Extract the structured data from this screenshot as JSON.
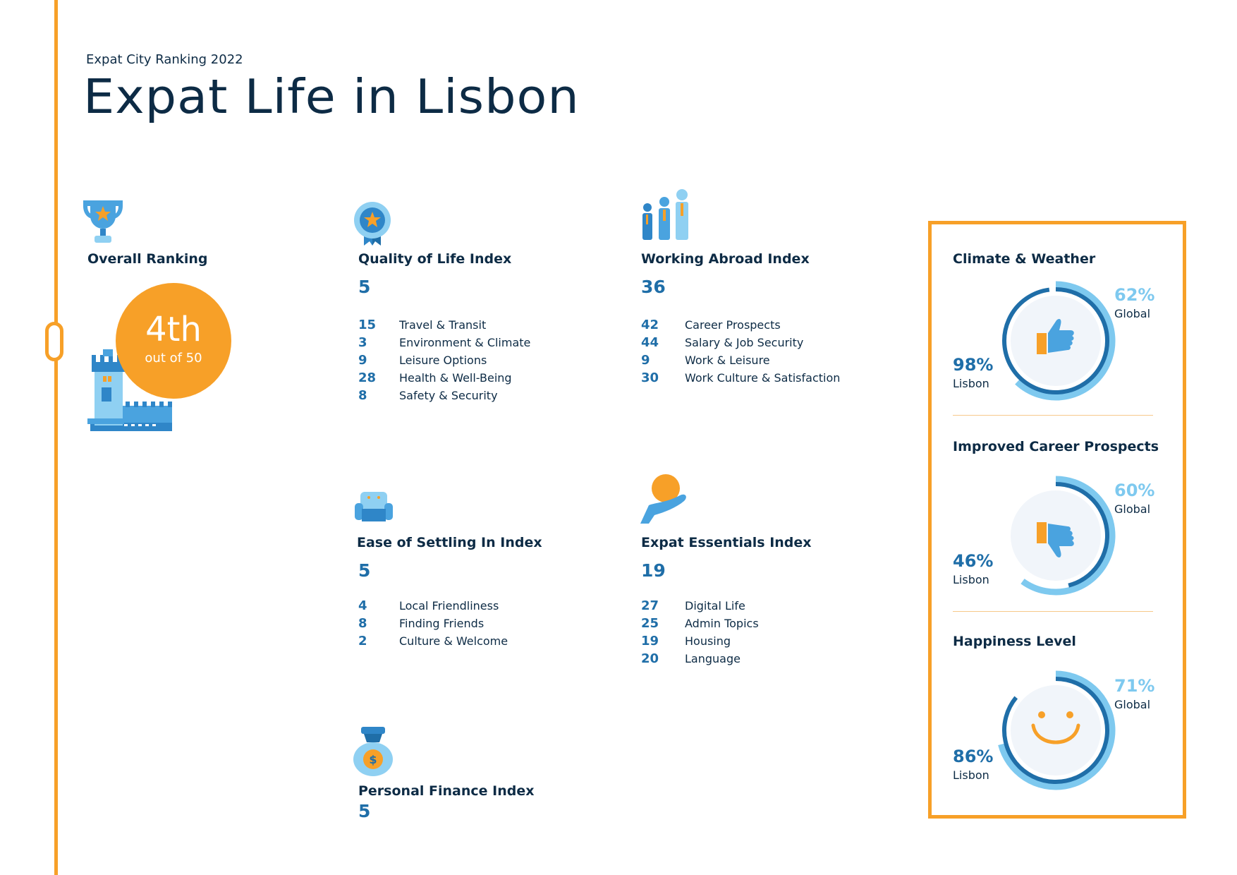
{
  "header": {
    "subtitle": "Expat City Ranking 2022",
    "title": "Expat Life in Lisbon"
  },
  "overall": {
    "title": "Overall Ranking",
    "rank": "4th",
    "out_of": "out of 50"
  },
  "quality": {
    "title": "Quality of Life Index",
    "score": "5",
    "items": [
      {
        "rank": "15",
        "label": "Travel & Transit"
      },
      {
        "rank": "3",
        "label": "Environment & Climate"
      },
      {
        "rank": "9",
        "label": "Leisure Options"
      },
      {
        "rank": "28",
        "label": "Health & Well-Being"
      },
      {
        "rank": "8",
        "label": "Safety & Security"
      }
    ]
  },
  "working": {
    "title": "Working Abroad Index",
    "score": "36",
    "items": [
      {
        "rank": "42",
        "label": "Career Prospects"
      },
      {
        "rank": "44",
        "label": "Salary & Job Security"
      },
      {
        "rank": "9",
        "label": "Work & Leisure"
      },
      {
        "rank": "30",
        "label": "Work Culture & Satisfaction"
      }
    ]
  },
  "settling": {
    "title": "Ease of Settling In Index",
    "score": "5",
    "items": [
      {
        "rank": "4",
        "label": "Local Friendliness"
      },
      {
        "rank": "8",
        "label": "Finding Friends"
      },
      {
        "rank": "2",
        "label": "Culture & Welcome"
      }
    ]
  },
  "essentials": {
    "title": "Expat Essentials Index",
    "score": "19",
    "items": [
      {
        "rank": "27",
        "label": "Digital Life"
      },
      {
        "rank": "25",
        "label": "Admin Topics"
      },
      {
        "rank": "19",
        "label": "Housing"
      },
      {
        "rank": "20",
        "label": "Language"
      }
    ]
  },
  "finance": {
    "title": "Personal Finance Index",
    "score": "5"
  },
  "gauges": [
    {
      "title": "Climate & Weather",
      "global_pct": "62%",
      "global_label": "Global",
      "global_value": 0.62,
      "lisbon_pct": "98%",
      "lisbon_label": "Lisbon",
      "lisbon_value": 0.98,
      "icon": "thumbs-up-icon"
    },
    {
      "title": "Improved Career Prospects",
      "global_pct": "60%",
      "global_label": "Global",
      "global_value": 0.6,
      "lisbon_pct": "46%",
      "lisbon_label": "Lisbon",
      "lisbon_value": 0.46,
      "icon": "thumbs-down-icon"
    },
    {
      "title": "Happiness Level",
      "global_pct": "71%",
      "global_label": "Global",
      "global_value": 0.71,
      "lisbon_pct": "86%",
      "lisbon_label": "Lisbon",
      "lisbon_value": 0.86,
      "icon": "smiley-icon"
    }
  ],
  "colors": {
    "accent": "#f7a028",
    "dark": "#0d2b45",
    "blue": "#1f6ea8",
    "light_blue": "#7ec9ef"
  }
}
